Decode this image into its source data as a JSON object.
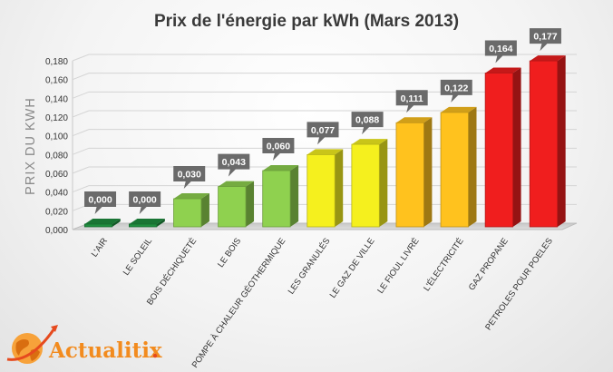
{
  "chart_data": {
    "type": "bar",
    "title": "Prix de l'énergie par kWh (Mars 2013)",
    "ylabel": "PRIX DU KWH",
    "xlabel": "",
    "ylim": [
      0,
      0.18
    ],
    "yticks": [
      "0,000",
      "0,020",
      "0,040",
      "0,060",
      "0,080",
      "0,100",
      "0,120",
      "0,140",
      "0,160",
      "0,180"
    ],
    "categories": [
      "L'AIR",
      "LE SOLEIL",
      "BOIS DÉCHIQUETÉ",
      "LE BOIS",
      "POMPE À CHALEUR GÉOTHERMIQUE",
      "LES GRANULÉS",
      "LE GAZ DE VILLE",
      "LE FIOUL LIVRÉ",
      "L'ÉLECTRICITÉ",
      "GAZ PROPANE",
      "PETROLES POUR POELES"
    ],
    "values": [
      0.0,
      0.0,
      0.03,
      0.043,
      0.06,
      0.077,
      0.088,
      0.111,
      0.122,
      0.164,
      0.177
    ],
    "value_labels": [
      "0,000",
      "0,000",
      "0,030",
      "0,043",
      "0,060",
      "0,077",
      "0,088",
      "0,111",
      "0,122",
      "0,164",
      "0,177"
    ],
    "colors": [
      "#1f8f3f",
      "#1f8f3f",
      "#8fd14f",
      "#8fd14f",
      "#8fd14f",
      "#f5f01e",
      "#f5f01e",
      "#ffc21e",
      "#ffc21e",
      "#f01e1e",
      "#f01e1e"
    ],
    "grid": true,
    "legend": "none"
  },
  "logo": {
    "text": "Actualitix",
    "dot": "."
  }
}
